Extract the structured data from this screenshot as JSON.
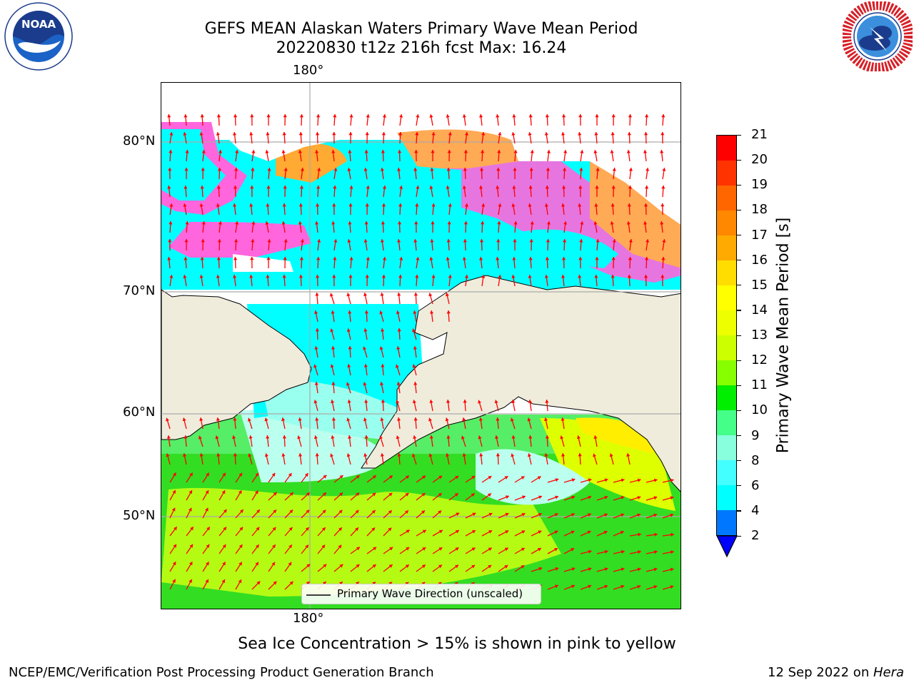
{
  "header": {
    "title_line1": "GEFS MEAN Alaskan Waters Primary Wave Mean Period",
    "title_line2": "20220830 t12z 216h fcst   Max: 16.24"
  },
  "logos": {
    "left": {
      "name": "noaa-logo",
      "text": "NOAA",
      "ring_text": "NATIONAL OCEANIC AND ATMOSPHERIC ADMINISTRATION · U.S. DEPARTMENT OF COMMERCE"
    },
    "right": {
      "name": "nws-logo",
      "ring_text": "NATIONAL WEATHER SERVICE"
    }
  },
  "map": {
    "lon_label_top": "180°",
    "lon_label_bottom": "180°",
    "lat_labels": [
      "80°N",
      "70°N",
      "60°N",
      "50°N"
    ],
    "land_color": "#efecdc",
    "arrow_color": "#ff0000",
    "legend_label": "Primary Wave Direction (unscaled)"
  },
  "colorbar": {
    "label": "Primary Wave Mean Period [s]",
    "ticks": [
      "21",
      "20",
      "19",
      "18",
      "17",
      "16",
      "15",
      "14",
      "13",
      "12",
      "11",
      "10",
      "9",
      "8",
      "6",
      "4",
      "2"
    ],
    "colors": [
      "#ff0000",
      "#ff3300",
      "#ff6600",
      "#ff8800",
      "#ffaa00",
      "#ffdd00",
      "#ffff00",
      "#eeff00",
      "#ccff00",
      "#88ff00",
      "#00ee00",
      "#44ff88",
      "#88ffdd",
      "#44ffff",
      "#00ffff",
      "#0077ff"
    ],
    "extend_color": "#0000ff"
  },
  "caption": "Sea Ice Concentration > 15% is shown in pink to yellow",
  "footer": {
    "left": "NCEP/EMC/Verification Post Processing Product Generation Branch",
    "right_date": "12 Sep 2022 on ",
    "right_host": "Hera"
  }
}
